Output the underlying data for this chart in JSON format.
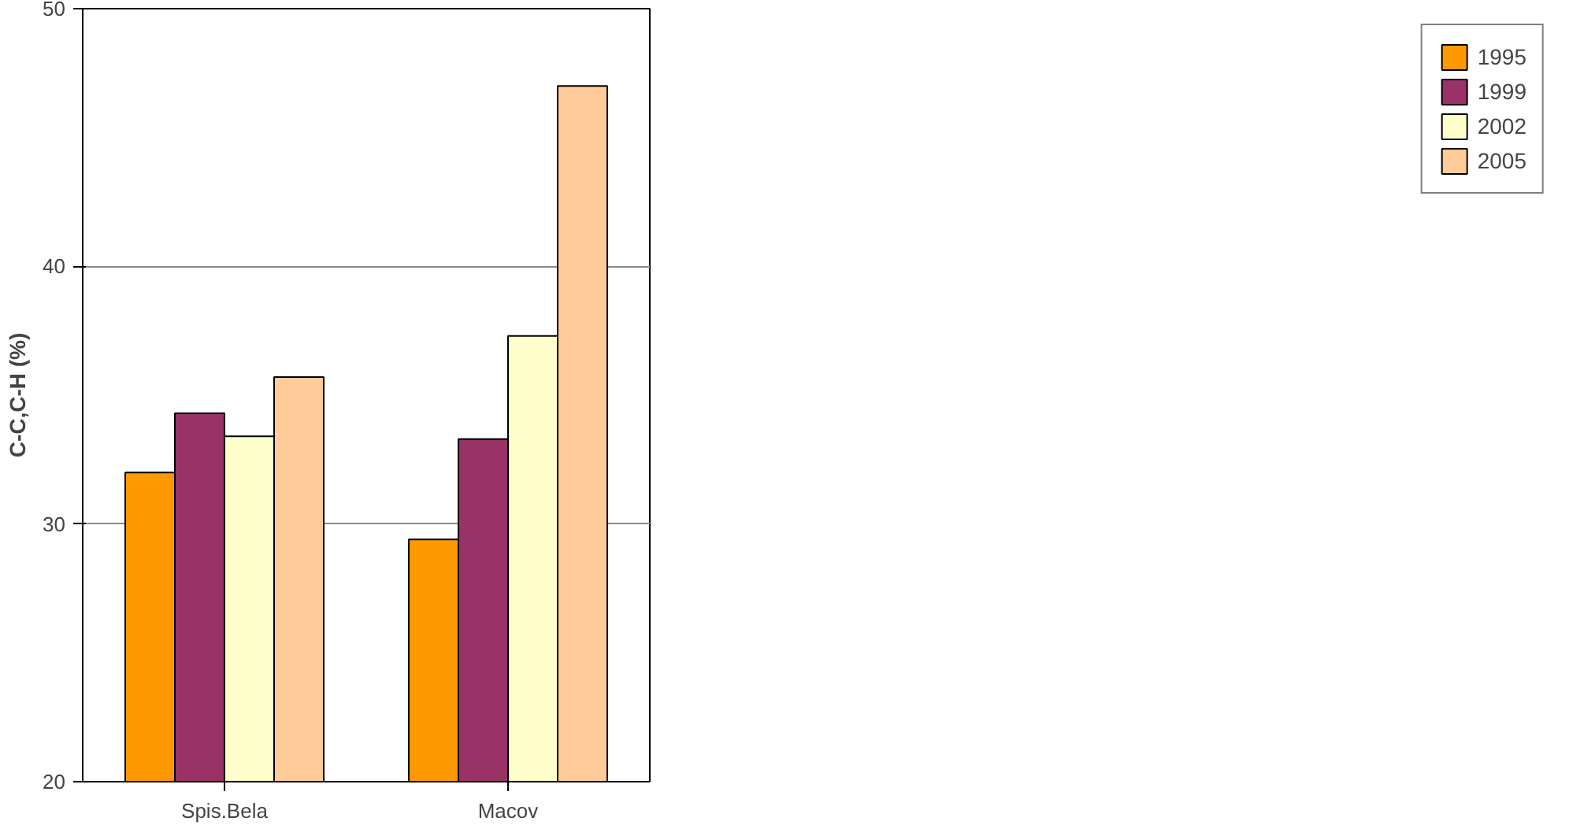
{
  "chart_data": {
    "type": "bar",
    "ylabel": "C-C,C-H (%)",
    "categories": [
      "Spis.Bela",
      "Macov"
    ],
    "series": [
      {
        "name": "1995",
        "color": "#ff9900",
        "values": [
          32,
          29.4
        ]
      },
      {
        "name": "1999",
        "color": "#993366",
        "values": [
          34.3,
          33.3
        ]
      },
      {
        "name": "2002",
        "color": "#ffffcc",
        "values": [
          33.4,
          37.3
        ]
      },
      {
        "name": "2005",
        "color": "#ffcc99",
        "values": [
          35.7,
          47
        ]
      }
    ],
    "ylim": [
      20,
      50
    ],
    "yticks": [
      20,
      30,
      40,
      50
    ],
    "grid": "y",
    "legend": "right"
  }
}
